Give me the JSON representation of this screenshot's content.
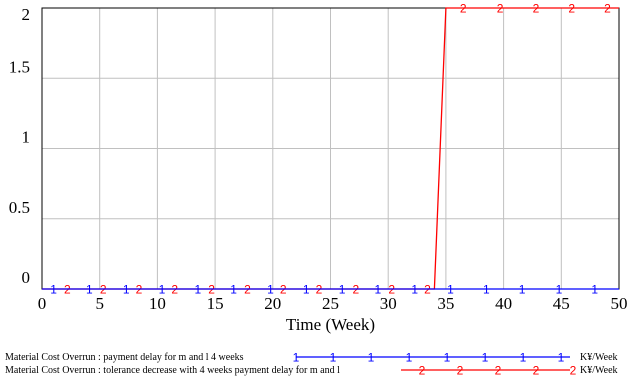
{
  "chart_data": {
    "type": "line",
    "title": "",
    "xlabel": "Time (Week)",
    "ylabel": "",
    "xlim": [
      0,
      50
    ],
    "ylim": [
      0,
      2
    ],
    "x_ticks": [
      "0",
      "5",
      "10",
      "15",
      "20",
      "25",
      "30",
      "35",
      "40",
      "45",
      "50"
    ],
    "y_ticks": [
      "0",
      "0.5",
      "1",
      "1.5",
      "2"
    ],
    "grid": true,
    "legend_position": "bottom",
    "series": [
      {
        "name": "Material Cost Overrun : payment delay for m and l 4 weeks",
        "unit": "K¥/Week",
        "marker": "1",
        "color": "#0000ff",
        "points": [
          [
            0,
            0
          ],
          [
            50,
            0
          ]
        ]
      },
      {
        "name": "Material Cost Overrun : tolerance decrease with 4 weeks payment delay for m and l",
        "unit": "K¥/Week",
        "marker": "2",
        "color": "#ff0000",
        "points": [
          [
            0,
            0
          ],
          [
            34,
            0
          ],
          [
            35,
            2
          ],
          [
            50,
            2
          ]
        ]
      }
    ]
  }
}
